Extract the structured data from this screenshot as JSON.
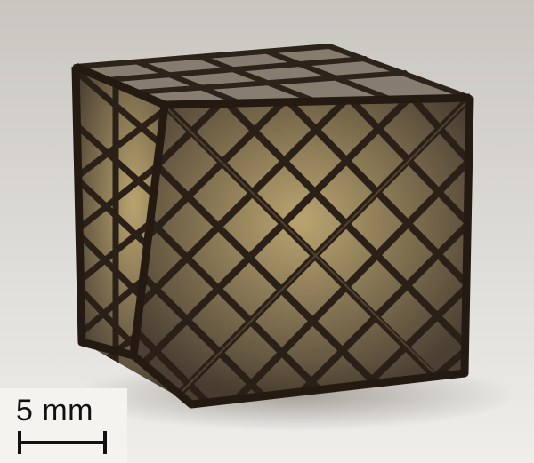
{
  "photo": {
    "subject_icon": "lattice-cube-icon",
    "colors": {
      "background_top": "#cfccc6",
      "background_bottom": "#ecebe8",
      "lattice": "#2e231a",
      "lattice_highlight": "#6b5a40",
      "interior_glow": "#b39a5e"
    }
  },
  "scale_bar": {
    "label": "5 mm"
  }
}
